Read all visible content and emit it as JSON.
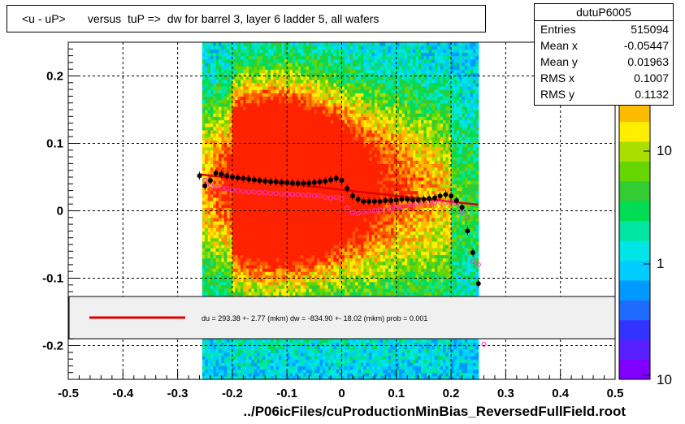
{
  "title": "<u - uP>       versus  tuP =>  dw for barrel 3, layer 6 ladder 5, all wafers",
  "stats": {
    "name": "dutuP6005",
    "rows": [
      {
        "label": "Entries",
        "value": "515094"
      },
      {
        "label": "Mean x",
        "value": "-0.05447"
      },
      {
        "label": "Mean y",
        "value": "0.01963"
      },
      {
        "label": "RMS x",
        "value": "0.1007"
      },
      {
        "label": "RMS y",
        "value": "0.1132"
      }
    ]
  },
  "fit_legend": "du =  293.38 +-  2.77 (mkm) dw = -834.90 +- 18.02 (mkm) prob = 0.001",
  "xlabel": "../P06icFiles/cuProductionMinBias_ReversedFullField.root",
  "colors": {
    "fit_line": "#e00000",
    "profile_black": "#000000",
    "profile_magenta": "#ff33cc",
    "palette": [
      "#8000ff",
      "#5a1fff",
      "#3333ff",
      "#1f6bff",
      "#0099ff",
      "#00ccff",
      "#00e6e6",
      "#00e6a0",
      "#00dd55",
      "#33cc33",
      "#66d600",
      "#aadd00",
      "#ffee00",
      "#ffbb00",
      "#ff8800",
      "#ff5500",
      "#ff2200"
    ]
  },
  "chart_data": {
    "type": "heatmap",
    "title": "<u - uP>       versus  tuP =>  dw for barrel 3, layer 6 ladder 5, all wafers",
    "xlabel": "../P06icFiles/cuProductionMinBias_ReversedFullField.root",
    "ylabel": "",
    "xlim": [
      -0.5,
      0.5
    ],
    "ylim": [
      -0.25,
      0.25
    ],
    "xticks": [
      "-0.5",
      "-0.4",
      "-0.3",
      "-0.2",
      "-0.1",
      "0",
      "0.1",
      "0.2",
      "0.3",
      "0.4",
      "0.5"
    ],
    "yticks": [
      "-0.2",
      "-0.1",
      "0",
      "0.1",
      "0.2"
    ],
    "zaxis": {
      "scale": "log",
      "ticks": [
        "10^-1 (cut)",
        "1",
        "10"
      ]
    },
    "grid": true,
    "heatmap_x_range": [
      -0.255,
      0.25
    ],
    "hot_spot": {
      "x": -0.13,
      "y": 0.05
    },
    "series": [
      {
        "name": "",
        "style": "black filled circles",
        "points": [
          [
            -0.26,
            0.052
          ],
          [
            -0.25,
            0.037
          ],
          [
            -0.24,
            0.045
          ],
          [
            -0.23,
            0.056
          ],
          [
            -0.22,
            0.054
          ],
          [
            -0.21,
            0.052
          ],
          [
            -0.2,
            0.05
          ],
          [
            -0.19,
            0.049
          ],
          [
            -0.18,
            0.048
          ],
          [
            -0.17,
            0.047
          ],
          [
            -0.16,
            0.046
          ],
          [
            -0.15,
            0.045
          ],
          [
            -0.14,
            0.044
          ],
          [
            -0.13,
            0.043
          ],
          [
            -0.12,
            0.043
          ],
          [
            -0.11,
            0.042
          ],
          [
            -0.1,
            0.042
          ],
          [
            -0.09,
            0.041
          ],
          [
            -0.08,
            0.041
          ],
          [
            -0.07,
            0.041
          ],
          [
            -0.06,
            0.041
          ],
          [
            -0.05,
            0.042
          ],
          [
            -0.04,
            0.043
          ],
          [
            -0.03,
            0.044
          ],
          [
            -0.02,
            0.046
          ],
          [
            -0.01,
            0.048
          ],
          [
            0.0,
            0.045
          ],
          [
            0.01,
            0.033
          ],
          [
            0.02,
            0.022
          ],
          [
            0.03,
            0.017
          ],
          [
            0.04,
            0.014
          ],
          [
            0.05,
            0.014
          ],
          [
            0.06,
            0.014
          ],
          [
            0.07,
            0.014
          ],
          [
            0.08,
            0.015
          ],
          [
            0.09,
            0.015
          ],
          [
            0.1,
            0.016
          ],
          [
            0.11,
            0.017
          ],
          [
            0.12,
            0.017
          ],
          [
            0.13,
            0.016
          ],
          [
            0.14,
            0.016
          ],
          [
            0.15,
            0.017
          ],
          [
            0.16,
            0.018
          ],
          [
            0.17,
            0.019
          ],
          [
            0.18,
            0.022
          ],
          [
            0.19,
            0.024
          ],
          [
            0.2,
            0.022
          ],
          [
            0.21,
            0.015
          ],
          [
            0.22,
            0.005
          ],
          [
            0.23,
            -0.03
          ],
          [
            0.24,
            -0.062
          ],
          [
            0.25,
            -0.108
          ]
        ]
      },
      {
        "name": "",
        "style": "magenta open circles",
        "points": [
          [
            -0.25,
            0.045
          ],
          [
            -0.24,
            0.038
          ],
          [
            -0.23,
            0.035
          ],
          [
            -0.22,
            0.034
          ],
          [
            -0.21,
            0.033
          ],
          [
            -0.2,
            0.031
          ],
          [
            -0.19,
            0.03
          ],
          [
            -0.18,
            0.029
          ],
          [
            -0.17,
            0.028
          ],
          [
            -0.16,
            0.028
          ],
          [
            -0.15,
            0.027
          ],
          [
            -0.14,
            0.027
          ],
          [
            -0.13,
            0.026
          ],
          [
            -0.12,
            0.026
          ],
          [
            -0.11,
            0.025
          ],
          [
            -0.1,
            0.025
          ],
          [
            -0.09,
            0.024
          ],
          [
            -0.08,
            0.024
          ],
          [
            -0.07,
            0.023
          ],
          [
            -0.06,
            0.023
          ],
          [
            -0.05,
            0.022
          ],
          [
            -0.04,
            0.022
          ],
          [
            -0.03,
            0.02
          ],
          [
            -0.02,
            0.019
          ],
          [
            -0.01,
            0.02
          ],
          [
            0.0,
            0.018
          ],
          [
            0.01,
            0.004
          ],
          [
            0.02,
            -0.003
          ],
          [
            0.03,
            -0.004
          ],
          [
            0.04,
            -0.002
          ],
          [
            0.05,
            -0.001
          ],
          [
            0.06,
            0.0
          ],
          [
            0.07,
            0.001
          ],
          [
            0.08,
            0.002
          ],
          [
            0.09,
            0.003
          ],
          [
            0.1,
            0.005
          ],
          [
            0.11,
            0.006
          ],
          [
            0.12,
            0.008
          ],
          [
            0.13,
            0.009
          ],
          [
            0.14,
            0.01
          ],
          [
            0.15,
            0.011
          ],
          [
            0.16,
            0.012
          ],
          [
            0.17,
            0.012
          ],
          [
            0.18,
            0.013
          ],
          [
            0.19,
            0.012
          ],
          [
            0.2,
            0.013
          ],
          [
            0.21,
            0.01
          ],
          [
            0.22,
            -0.002
          ],
          [
            0.23,
            -0.01
          ],
          [
            0.24,
            -0.075
          ],
          [
            0.25,
            -0.08
          ],
          [
            0.26,
            -0.198
          ]
        ]
      },
      {
        "name": "",
        "style": "red fit line",
        "points": [
          [
            -0.26,
            0.054
          ],
          [
            0.25,
            0.009
          ]
        ]
      }
    ]
  }
}
